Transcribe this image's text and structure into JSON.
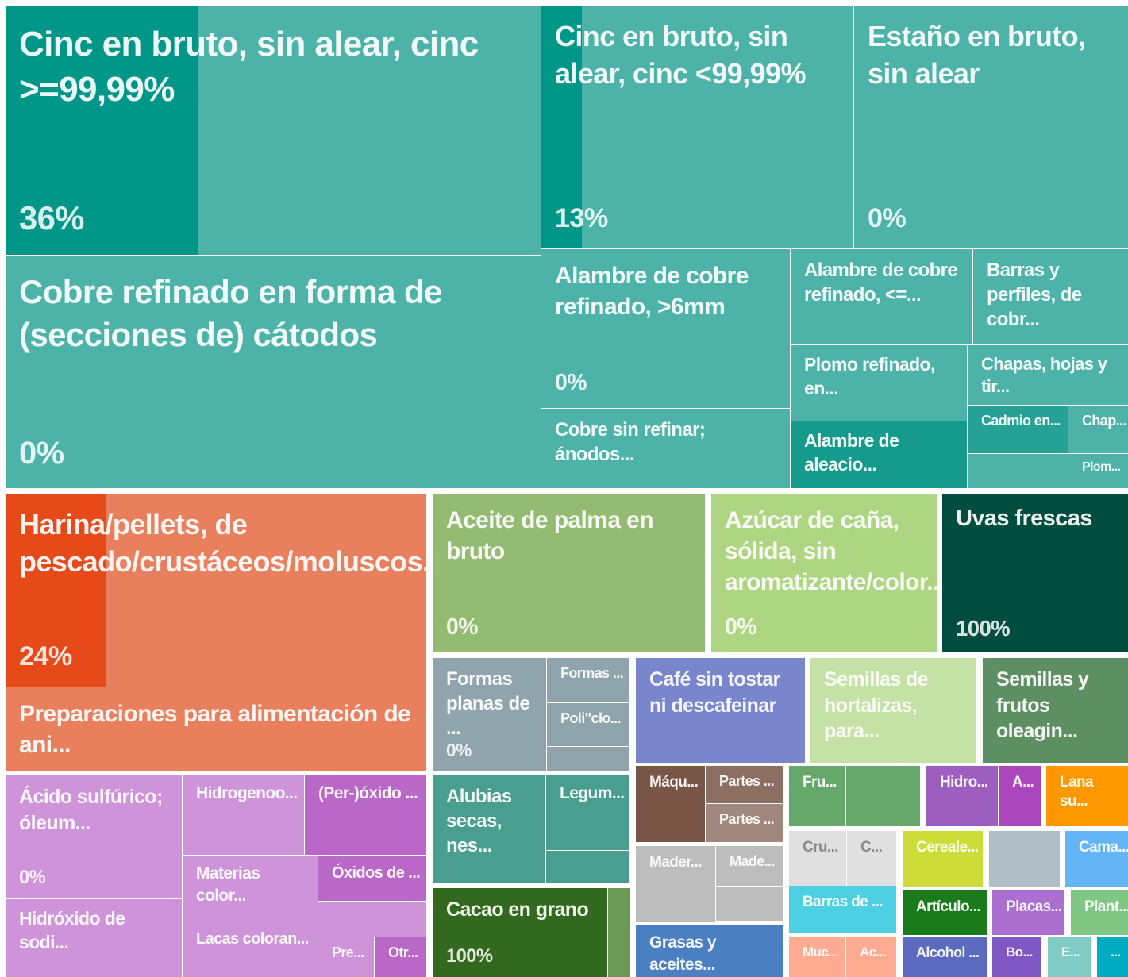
{
  "chart_data": {
    "type": "treemap",
    "tiles": [
      {
        "label": "Cinc en bruto, sin alear, cinc >=99,99%",
        "color": "#4db3a9",
        "accent": "#009688",
        "value": 36,
        "value_label": "36%"
      },
      {
        "label": "Cinc en bruto, sin alear, cinc <99,99%",
        "color": "#4db3a9",
        "accent": "#009688",
        "value": 13,
        "value_label": "13%"
      },
      {
        "label": "Estaño en bruto, sin alear",
        "color": "#4db3a9",
        "accent": "#009688",
        "value": 0,
        "value_label": "0%"
      },
      {
        "label": "Cobre refinado en forma de (secciones de) cátodos",
        "color": "#4db3a9",
        "accent": "#009688",
        "value": 0,
        "value_label": "0%"
      },
      {
        "label": "Alambre de cobre refinado, >6mm",
        "color": "#4db3a9",
        "accent": "#009688",
        "value": 0,
        "value_label": "0%"
      },
      {
        "label": "Cobre sin refinar; ánodos...",
        "color": "#4db3a9"
      },
      {
        "label": "Alambre de cobre refinado, <=...",
        "color": "#4db3a9"
      },
      {
        "label": "Barras y perfiles, de cobr...",
        "color": "#4db3a9"
      },
      {
        "label": "Plomo refinado, en...",
        "color": "#4db3a9"
      },
      {
        "label": "Chapas, hojas y tir...",
        "color": "#4db3a9"
      },
      {
        "label": "Alambre de aleacio...",
        "color": "#169a8c"
      },
      {
        "label": "Cadmio en...",
        "color": "#26a195"
      },
      {
        "label": "Chap...",
        "color": "#4db3a9"
      },
      {
        "label": "Plom...",
        "color": "#4db3a9"
      },
      {
        "label": "Harina/pellets, de pescado/crustáceos/moluscos...",
        "color": "#e8805e",
        "accent": "#e64a19",
        "value": 24,
        "value_label": "24%"
      },
      {
        "label": "Preparaciones para alimentación de ani...",
        "color": "#e8805e"
      },
      {
        "label": "Aceite de palma en bruto",
        "color": "#94bb72",
        "accent": "#7cb342",
        "value": 0,
        "value_label": "0%"
      },
      {
        "label": "Azúcar de caña, sólida, sin aromatizante/color...",
        "color": "#aed581",
        "accent": "#9ccc65",
        "value": 0,
        "value_label": "0%"
      },
      {
        "label": "Uvas frescas",
        "color": "#4d7f74",
        "accent": "#004d40",
        "value": 100,
        "value_label": "100%"
      },
      {
        "label": "Formas planas de ...",
        "color": "#90a4ae",
        "accent": "#78909c",
        "value": 0,
        "value_label": "0%"
      },
      {
        "label": "Formas ...",
        "color": "#90a4ae"
      },
      {
        "label": "Poli\"clo...",
        "color": "#90a4ae"
      },
      {
        "label": "Café sin tostar ni descafeinar",
        "color": "#7986cb"
      },
      {
        "label": "Semillas de hortalizas, para...",
        "color": "#c5e1a5"
      },
      {
        "label": "Semillas y frutos oleagin...",
        "color": "#5e8f62"
      },
      {
        "label": "Alubias secas, nes...",
        "color": "#4a9e90"
      },
      {
        "label": "Legum...",
        "color": "#4a9e90"
      },
      {
        "label": "Cacao en grano",
        "color": "#558b2f",
        "accent": "#33691e",
        "value": 100,
        "value_label": "100%"
      },
      {
        "label": "Ácido sulfúrico; óleum...",
        "color": "#ce93d8",
        "accent": "#ba68c8",
        "value": 0,
        "value_label": "0%"
      },
      {
        "label": "Hidróxido de sodi...",
        "color": "#ce93d8"
      },
      {
        "label": "Hidrogenoo...",
        "color": "#ce93d8"
      },
      {
        "label": "(Per-)óxido ...",
        "color": "#ba68c8"
      },
      {
        "label": "Materias color...",
        "color": "#ce93d8"
      },
      {
        "label": "Óxidos de ...",
        "color": "#ba68c8"
      },
      {
        "label": "Lacas coloran...",
        "color": "#ce93d8"
      },
      {
        "label": "Pre...",
        "color": "#ce93d8"
      },
      {
        "label": "Otr...",
        "color": "#ba68c8"
      },
      {
        "label": "Máqu...",
        "color": "#795548"
      },
      {
        "label": "Partes ...",
        "color": "#8d6e63"
      },
      {
        "label": "Partes ...",
        "color": "#a1887f"
      },
      {
        "label": "Mader...",
        "color": "#bdbdbd"
      },
      {
        "label": "Made...",
        "color": "#bdbdbd"
      },
      {
        "label": "Grasas y aceites...",
        "color": "#4a7fc1"
      },
      {
        "label": "Fru...",
        "color": "#66a86a"
      },
      {
        "label": "Cru...",
        "color": "#e0e0e0"
      },
      {
        "label": "C...",
        "color": "#e0e0e0"
      },
      {
        "label": "Cereale...",
        "color": "#cddc39"
      },
      {
        "label": "Hidro...",
        "color": "#9c5fc0"
      },
      {
        "label": "A...",
        "color": "#ab47bc"
      },
      {
        "label": "Lana su...",
        "color": "#ff9800"
      },
      {
        "label": "Cama...",
        "color": "#64b5f6"
      },
      {
        "label": "Barras de ...",
        "color": "#4dd0e1"
      },
      {
        "label": "Artículo...",
        "color": "#1b7a1b"
      },
      {
        "label": "Placas...",
        "color": "#ab6fd0"
      },
      {
        "label": "Plant...",
        "color": "#81c784"
      },
      {
        "label": "Muc...",
        "color": "#ffab91"
      },
      {
        "label": "Ac...",
        "color": "#ffab91"
      },
      {
        "label": "Alcohol ...",
        "color": "#5c6bc0"
      },
      {
        "label": "Bo...",
        "color": "#7e57c2"
      },
      {
        "label": "E...",
        "color": "#80cbc4"
      },
      {
        "label": "...",
        "color": "#00acc1"
      }
    ]
  }
}
